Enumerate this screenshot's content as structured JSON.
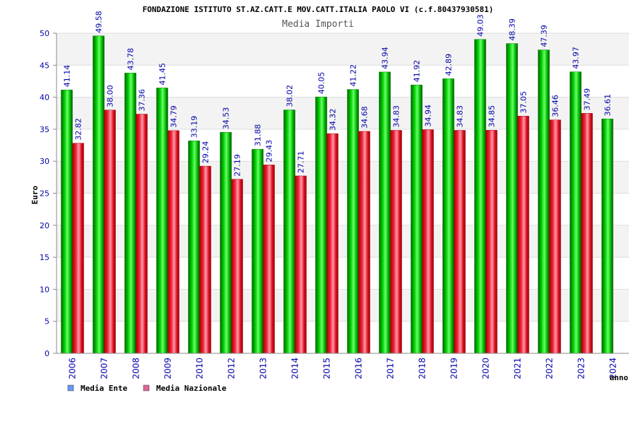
{
  "chart_data": {
    "type": "bar",
    "title": "FONDAZIONE ISTITUTO ST.AZ.CATT.E MOV.CATT.ITALIA PAOLO VI (c.f.80437930581)",
    "subtitle": "Media Importi",
    "ylabel": "Euro",
    "xlabel": "anno",
    "ylim": [
      0,
      50
    ],
    "yticks": [
      0,
      5,
      10,
      15,
      20,
      25,
      30,
      35,
      40,
      45,
      50
    ],
    "grid": true,
    "legend_position": "bottom-left",
    "categories": [
      "2006",
      "2007",
      "2008",
      "2009",
      "2010",
      "2012",
      "2013",
      "2014",
      "2015",
      "2016",
      "2017",
      "2018",
      "2019",
      "2020",
      "2021",
      "2022",
      "2023",
      "2024"
    ],
    "series": [
      {
        "name": "Media Ente",
        "color": "#00aa00",
        "legend_color": "#6699ff",
        "values": [
          41.14,
          49.58,
          43.78,
          41.45,
          33.19,
          34.53,
          31.88,
          38.02,
          40.05,
          41.22,
          43.94,
          41.92,
          42.89,
          49.03,
          48.39,
          47.39,
          43.97,
          36.61
        ],
        "labels": [
          "41.14",
          "49.58",
          "43.78",
          "41.45",
          "33.19",
          "34.53",
          "31.88",
          "38.02",
          "40.05",
          "41.22",
          "43.94",
          "41.92",
          "42.89",
          "49.03",
          "48.39",
          "47.39",
          "43.97",
          "36.61"
        ]
      },
      {
        "name": "Media Nazionale",
        "color": "#dd0022",
        "legend_color": "#dd6699",
        "values": [
          32.82,
          38.0,
          37.36,
          34.79,
          29.24,
          27.19,
          29.43,
          27.71,
          34.32,
          34.68,
          34.83,
          34.94,
          34.83,
          34.85,
          37.05,
          36.46,
          37.49,
          null
        ],
        "labels": [
          "32.82",
          "38.00",
          "37.36",
          "34.79",
          "29.24",
          "27.19",
          "29.43",
          "27.71",
          "34.32",
          "34.68",
          "34.83",
          "34.94",
          "34.83",
          "34.85",
          "37.05",
          "36.46",
          "37.49",
          null
        ]
      }
    ]
  }
}
